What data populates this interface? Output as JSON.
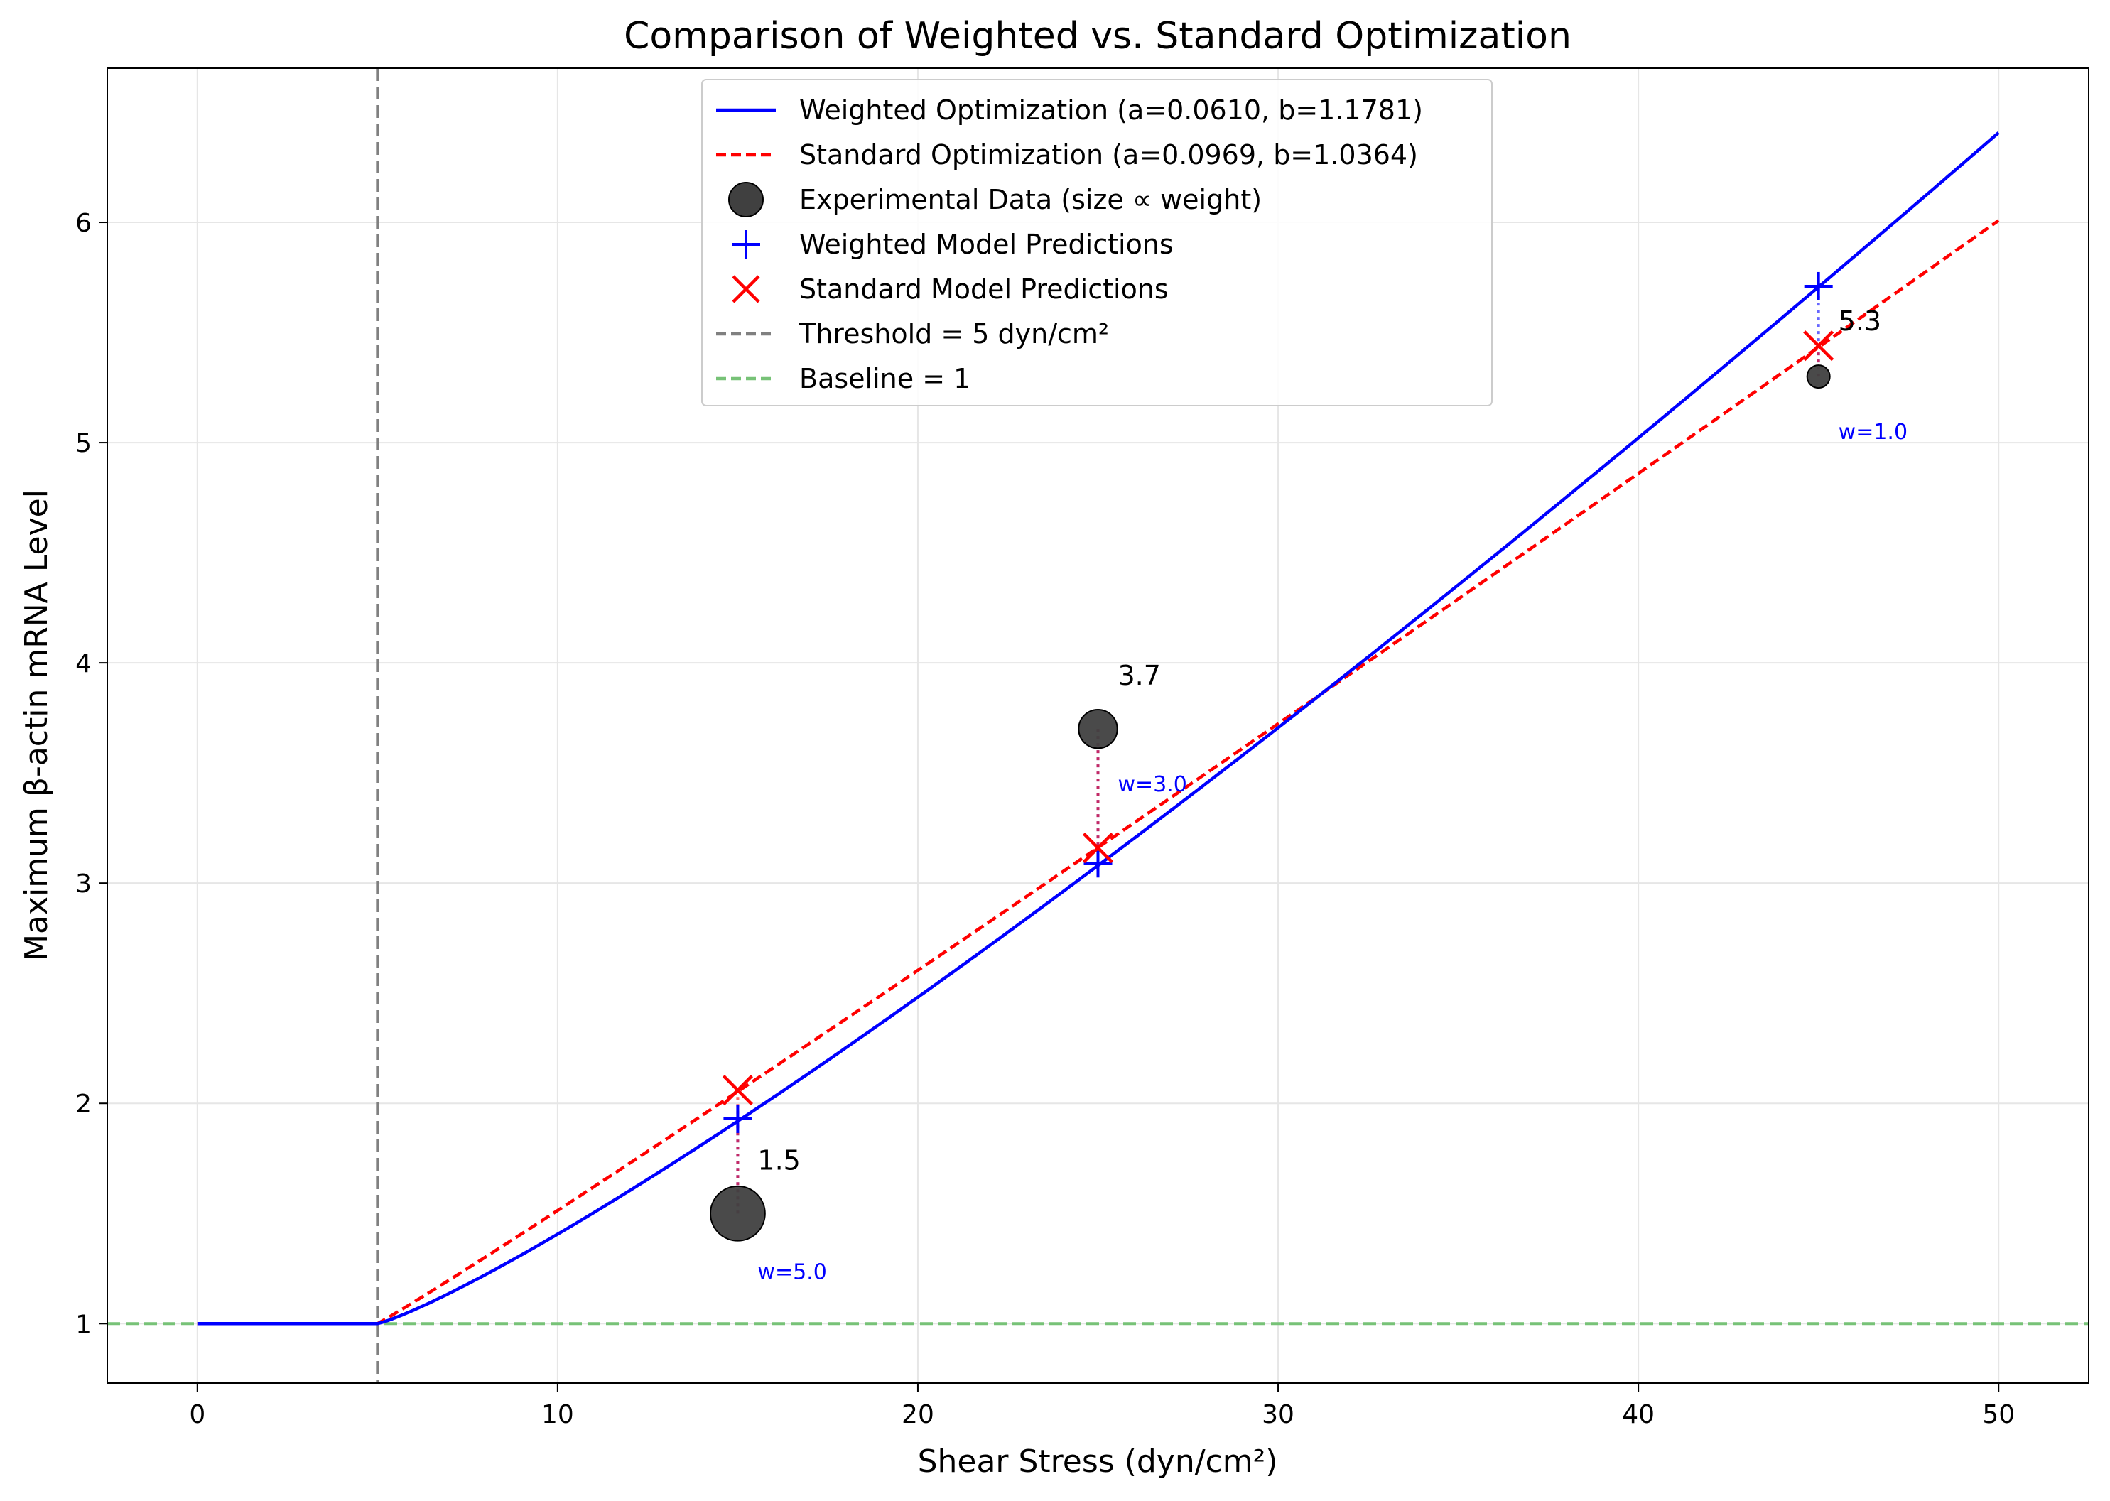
{
  "chart_data": {
    "type": "line",
    "title": "Comparison of Weighted vs. Standard Optimization",
    "xlabel": "Shear Stress (dyn/cm²)",
    "ylabel": "Maximum β-actin mRNA Level",
    "xlim": [
      -2.5,
      52.5
    ],
    "ylim": [
      0.73,
      6.7
    ],
    "xticks": [
      0,
      10,
      20,
      30,
      40,
      50
    ],
    "yticks": [
      1,
      2,
      3,
      4,
      5,
      6
    ],
    "grid": true,
    "legend_position": "top-center",
    "threshold": 5,
    "baseline": 1,
    "series": [
      {
        "name": "Weighted Optimization (a=0.0610, b=1.1781)",
        "kind": "line",
        "style": "solid",
        "color": "#0000ff",
        "a": 0.061,
        "b": 1.1781
      },
      {
        "name": "Standard Optimization (a=0.0969, b=1.0364)",
        "kind": "line",
        "style": "dashed",
        "color": "#ff0000",
        "a": 0.0969,
        "b": 1.0364
      },
      {
        "name": "Experimental Data (size ∝ weight)",
        "kind": "scatter",
        "color": "#404040",
        "points": [
          {
            "x": 15,
            "y": 1.5,
            "weight": 5.0,
            "label": "1.5",
            "weight_label": "w=5.0"
          },
          {
            "x": 25,
            "y": 3.7,
            "weight": 3.0,
            "label": "3.7",
            "weight_label": "w=3.0"
          },
          {
            "x": 45,
            "y": 5.3,
            "weight": 1.0,
            "label": "5.3",
            "weight_label": "w=1.0"
          }
        ]
      },
      {
        "name": "Weighted Model Predictions",
        "kind": "marker-plus",
        "color": "#0000ff",
        "points": [
          {
            "x": 15,
            "y": 1.93
          },
          {
            "x": 25,
            "y": 3.09
          },
          {
            "x": 45,
            "y": 5.71
          }
        ]
      },
      {
        "name": "Standard Model Predictions",
        "kind": "marker-x",
        "color": "#ff0000",
        "points": [
          {
            "x": 15,
            "y": 2.06
          },
          {
            "x": 25,
            "y": 3.16
          },
          {
            "x": 45,
            "y": 5.44
          }
        ]
      },
      {
        "name": "Threshold = 5 dyn/cm²",
        "kind": "vline",
        "style": "dashed",
        "color": "#808080",
        "x": 5
      },
      {
        "name": "Baseline = 1",
        "kind": "hline",
        "style": "dashed",
        "color": "#77c277",
        "y": 1
      }
    ]
  }
}
